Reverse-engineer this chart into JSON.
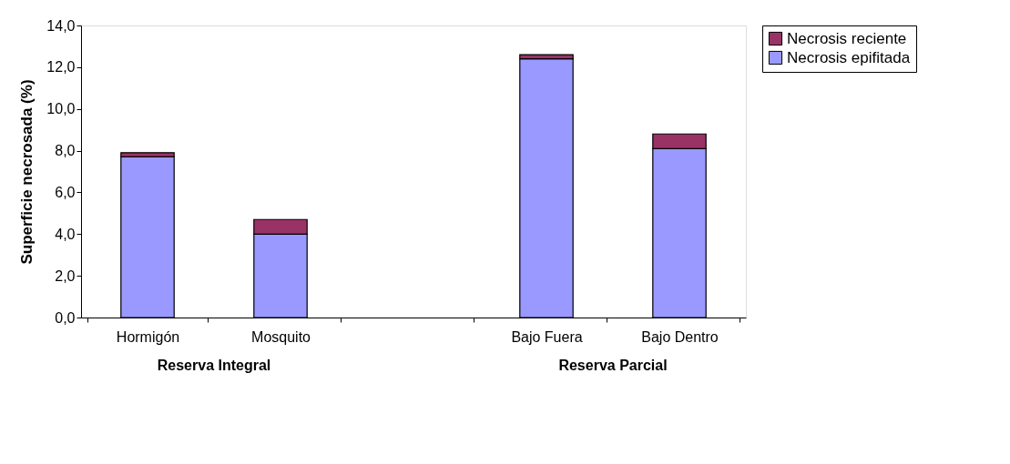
{
  "chart_data": {
    "type": "bar",
    "stacked": true,
    "categories": [
      "Hormigón",
      "Mosquito",
      null,
      "Bajo Fuera",
      "Bajo Dentro"
    ],
    "series": [
      {
        "name": "Necrosis epifitada",
        "color": "#9999ff",
        "values": [
          7.7,
          4.0,
          null,
          12.4,
          8.1
        ]
      },
      {
        "name": "Necrosis reciente",
        "color": "#993366",
        "values": [
          0.2,
          0.7,
          null,
          0.2,
          0.7
        ]
      }
    ],
    "ylabel": "Superficie necrosada (%)",
    "ylim": [
      0,
      14
    ],
    "yticks": [
      {
        "value": 0,
        "label": "0,0"
      },
      {
        "value": 2,
        "label": "2,0"
      },
      {
        "value": 4,
        "label": "4,0"
      },
      {
        "value": 6,
        "label": "6,0"
      },
      {
        "value": 8,
        "label": "8,0"
      },
      {
        "value": 10,
        "label": "10,0"
      },
      {
        "value": 12,
        "label": "12,0"
      },
      {
        "value": 14,
        "label": "14,0"
      }
    ],
    "annotations": [
      "Reserva Integral",
      "Reserva Parcial"
    ],
    "legend": "right",
    "grid": false
  }
}
